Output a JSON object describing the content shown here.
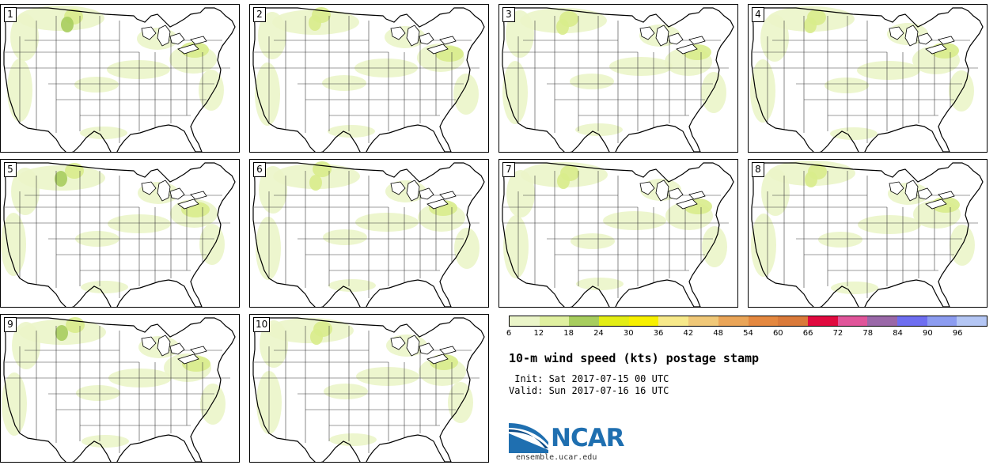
{
  "title": "10-m wind speed (kts) postage stamp",
  "init": " Init: Sat 2017-07-15 00 UTC",
  "valid": "Valid: Sun 2017-07-16 16 UTC",
  "logo_text": "NCAR",
  "site_url": "ensemble.ucar.edu",
  "members": [
    "1",
    "2",
    "3",
    "4",
    "5",
    "6",
    "7",
    "8",
    "9",
    "10"
  ],
  "colorbar": {
    "labels": [
      "6",
      "12",
      "18",
      "24",
      "30",
      "36",
      "42",
      "48",
      "54",
      "60",
      "66",
      "72",
      "78",
      "84",
      "90",
      "96"
    ],
    "colors": [
      "#ebf5c9",
      "#e0f0a0",
      "#a7cd5e",
      "#e3ed15",
      "#f7f000",
      "#f7e98a",
      "#f0c878",
      "#eaa558",
      "#e48840",
      "#da7a3a",
      "#e00a3f",
      "#e0559a",
      "#9a68a8",
      "#6e6ef0",
      "#8c9cf0",
      "#b4c6f4"
    ]
  },
  "colors": {
    "map_outline": "#000000",
    "state_lines": "#3a3a3a",
    "wind_light": "#ebf5c9",
    "wind_mid": "#d8ec8c",
    "wind_strong": "#a7cd5e"
  }
}
